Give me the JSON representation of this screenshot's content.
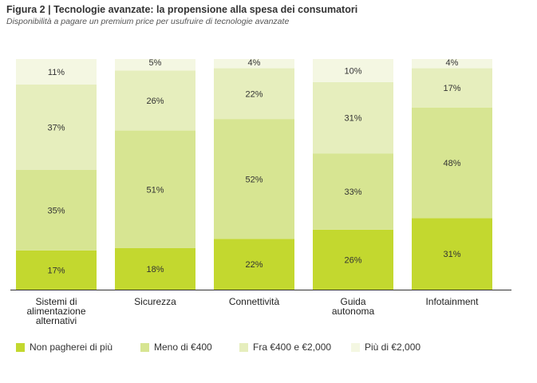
{
  "title": "Figura 2 | Tecnologie avanzate: la propensione alla spesa dei consumatori",
  "subtitle": "Disponibilità a pagare un premium price per usufruire di tecnologie avanzate",
  "colors": {
    "non_pagherei": "#c3d82f",
    "meno_400": "#d7e592",
    "fra_400_2000": "#e6eebd",
    "piu_2000": "#f4f7e2",
    "axis": "#333333"
  },
  "legend": [
    {
      "label": "Non pagherei di più",
      "color": "#c3d82f"
    },
    {
      "label": "Meno di €400",
      "color": "#d7e592"
    },
    {
      "label": "Fra €400 e €2,000",
      "color": "#e6eebd"
    },
    {
      "label": "Più di €2,000",
      "color": "#f4f7e2"
    }
  ],
  "chart_data": {
    "type": "bar",
    "stacked": true,
    "categories": [
      [
        "Sistemi di",
        "alimentazione",
        "alternativi"
      ],
      [
        "Sicurezza"
      ],
      [
        "Connettività"
      ],
      [
        "Guida",
        "autonoma"
      ],
      [
        "Infotainment"
      ]
    ],
    "series": [
      {
        "name": "Non pagherei di più",
        "values": [
          17,
          18,
          22,
          26,
          31
        ],
        "labels": [
          "17%",
          "18%",
          "22%",
          "26%",
          "31%"
        ]
      },
      {
        "name": "Meno di €400",
        "values": [
          35,
          51,
          52,
          33,
          48
        ],
        "labels": [
          "35%",
          "51%",
          "52%",
          "33%",
          "48%"
        ]
      },
      {
        "name": "Fra €400 e €2,000",
        "values": [
          37,
          26,
          22,
          31,
          17
        ],
        "labels": [
          "37%",
          "26%",
          "22%",
          "31%",
          "17%"
        ]
      },
      {
        "name": "Più di €2,000",
        "values": [
          11,
          5,
          4,
          10,
          4
        ],
        "labels": [
          "11%",
          "5%",
          "4%",
          "10%",
          "4%"
        ]
      }
    ],
    "title": "Figura 2 | Tecnologie avanzate: la propensione alla spesa dei consumatori",
    "subtitle": "Disponibilità a pagare un premium price per usufruire di tecnologie avanzate",
    "xlabel": "",
    "ylabel": "",
    "ylim": [
      0,
      100
    ],
    "grid": false,
    "legend_position": "bottom"
  }
}
